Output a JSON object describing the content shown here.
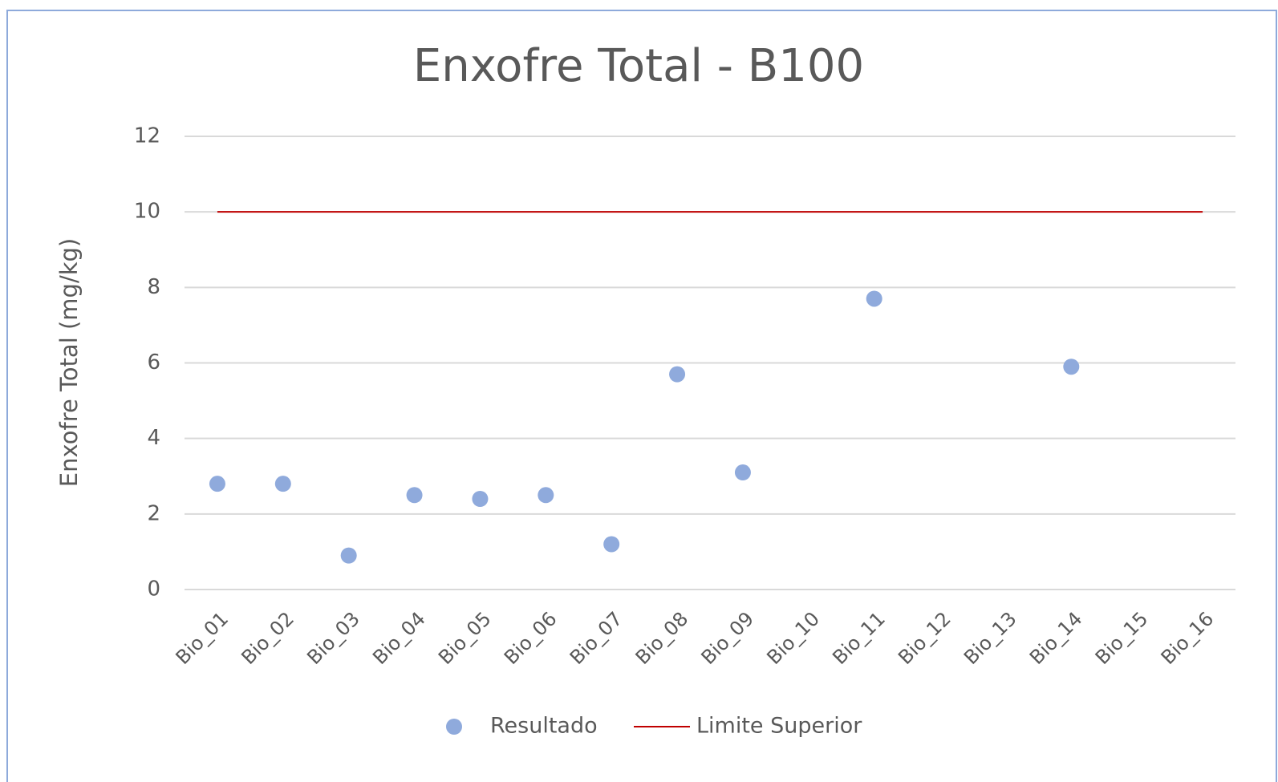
{
  "chart_data": {
    "type": "scatter",
    "title": "Enxofre Total - B100",
    "y_label": "Enxofre Total (mg/kg)",
    "categories": [
      "Bio_01",
      "Bio_02",
      "Bio_03",
      "Bio_04",
      "Bio_05",
      "Bio_06",
      "Bio_07",
      "Bio_08",
      "Bio_09",
      "Bio_10",
      "Bio_11",
      "Bio_12",
      "Bio_13",
      "Bio_14",
      "Bio_15",
      "Bio_16"
    ],
    "series": [
      {
        "name": "Resultado",
        "type": "scatter",
        "color": "#8faadc",
        "values": [
          2.8,
          2.8,
          0.9,
          2.5,
          2.4,
          2.5,
          1.2,
          5.7,
          3.1,
          null,
          7.7,
          null,
          null,
          5.9,
          null,
          null
        ]
      },
      {
        "name": "Limite Superior",
        "type": "line",
        "color": "#c00000",
        "values": [
          10,
          10,
          10,
          10,
          10,
          10,
          10,
          10,
          10,
          10,
          10,
          10,
          10,
          10,
          10,
          10
        ]
      }
    ],
    "ylim": [
      0,
      12
    ],
    "yticks": [
      0,
      2,
      4,
      6,
      8,
      10,
      12
    ],
    "grid": true,
    "legend": "bottom"
  }
}
